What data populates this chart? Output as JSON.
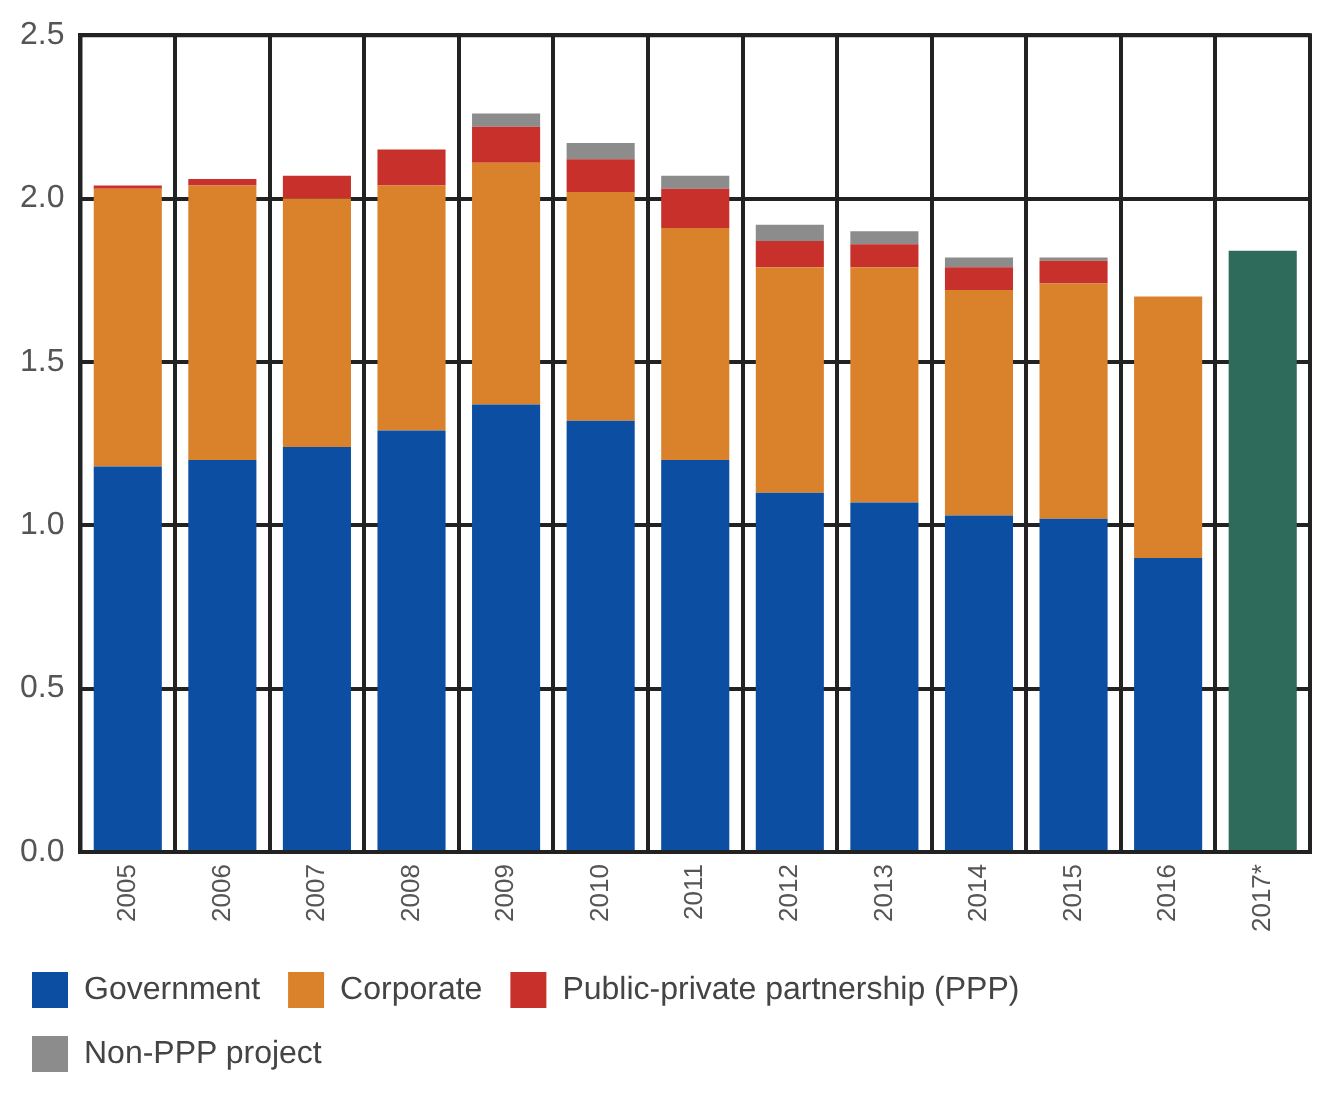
{
  "chart_data": {
    "type": "bar",
    "stacked": true,
    "categories": [
      "2005",
      "2006",
      "2007",
      "2008",
      "2009",
      "2010",
      "2011",
      "2012",
      "2013",
      "2014",
      "2015",
      "2016",
      "2017*"
    ],
    "series": [
      {
        "name": "Government",
        "color": "#0b4ea2",
        "values": [
          1.18,
          1.2,
          1.24,
          1.29,
          1.37,
          1.32,
          1.2,
          1.1,
          1.07,
          1.03,
          1.02,
          0.9,
          null
        ]
      },
      {
        "name": "Corporate",
        "color": "#d9822b",
        "values": [
          0.85,
          0.84,
          0.76,
          0.75,
          0.74,
          0.7,
          0.71,
          0.69,
          0.72,
          0.69,
          0.72,
          0.8,
          null
        ]
      },
      {
        "name": "Public-private partnership (PPP)",
        "color": "#c8312b",
        "values": [
          0.01,
          0.02,
          0.07,
          0.11,
          0.11,
          0.1,
          0.12,
          0.08,
          0.07,
          0.07,
          0.07,
          null,
          null
        ]
      },
      {
        "name": "Non-PPP project",
        "color": "#8c8c8c",
        "values": [
          null,
          null,
          null,
          null,
          0.04,
          0.05,
          0.04,
          0.05,
          0.04,
          0.03,
          0.01,
          null,
          null
        ]
      },
      {
        "color": "#2e6b5a",
        "values": [
          null,
          null,
          null,
          null,
          null,
          null,
          null,
          null,
          null,
          null,
          null,
          null,
          1.84
        ]
      }
    ],
    "ylim": [
      0,
      2.5
    ],
    "yticks": [
      {
        "value": 0,
        "label": "0.0"
      },
      {
        "value": 0.5,
        "label": "0.5"
      },
      {
        "value": 1,
        "label": "1.0"
      },
      {
        "value": 1.5,
        "label": "1.5"
      },
      {
        "value": 2,
        "label": "2.0"
      },
      {
        "value": 2.5,
        "label": "2.5"
      }
    ],
    "grid": true,
    "legend": "bottom"
  }
}
